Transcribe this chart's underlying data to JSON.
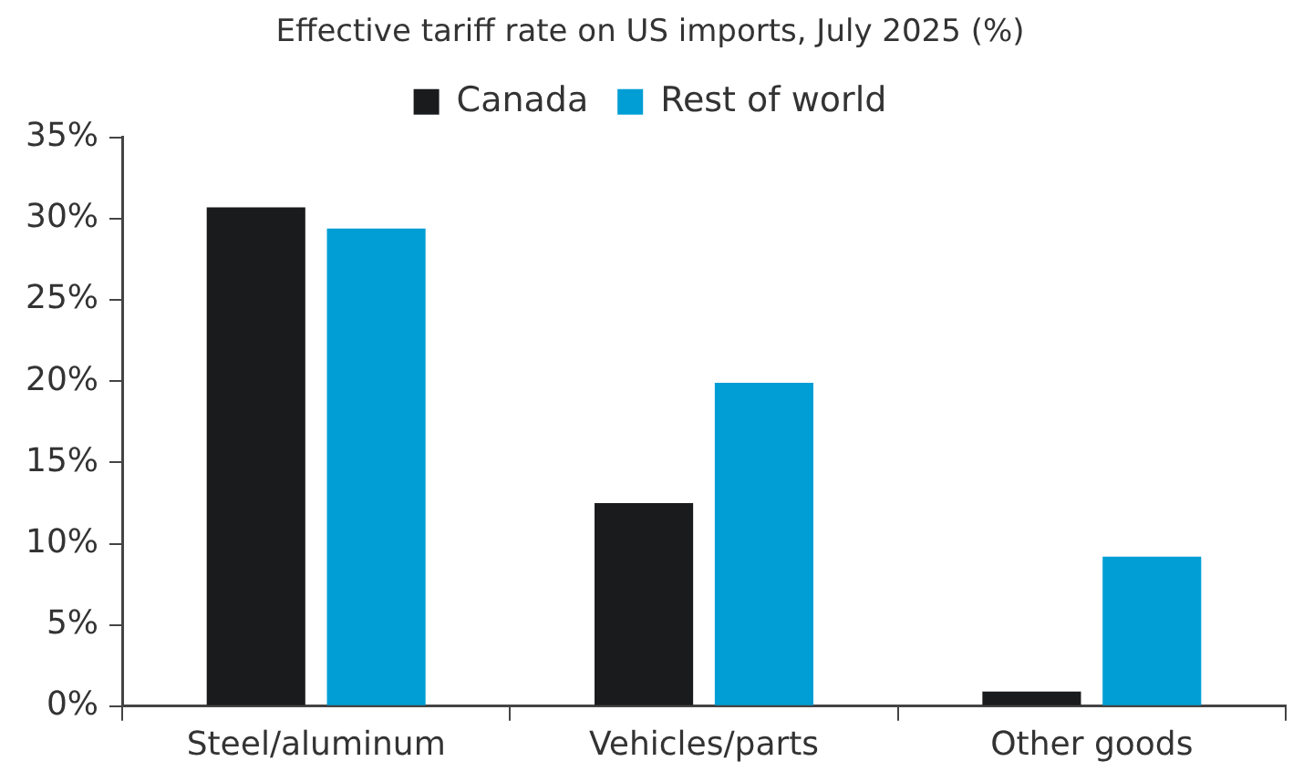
{
  "chart_data": {
    "type": "bar",
    "title": "Effective tariff rate on US imports, July 2025 (%)",
    "categories": [
      "Steel/aluminum",
      "Vehicles/parts",
      "Other goods"
    ],
    "series": [
      {
        "name": "Canada",
        "color": "#1a1b1d",
        "values": [
          30.7,
          12.5,
          0.9
        ]
      },
      {
        "name": "Rest of world",
        "color": "#009ed5",
        "values": [
          29.4,
          19.9,
          9.2
        ]
      }
    ],
    "ylim": [
      0,
      35
    ],
    "yticks": [
      {
        "value": 0,
        "label": "0%"
      },
      {
        "value": 5,
        "label": "5%"
      },
      {
        "value": 10,
        "label": "10%"
      },
      {
        "value": 15,
        "label": "15%"
      },
      {
        "value": 20,
        "label": "20%"
      },
      {
        "value": 25,
        "label": "25%"
      },
      {
        "value": 30,
        "label": "30%"
      },
      {
        "value": 35,
        "label": "35%"
      }
    ],
    "grid": false,
    "legend": "top"
  }
}
